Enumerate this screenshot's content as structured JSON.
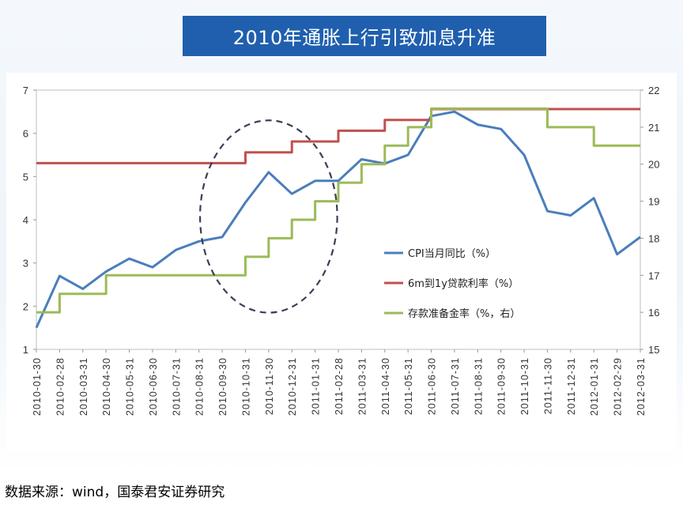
{
  "page": {
    "title": "2010年通胀上行引致加息升准",
    "source": "数据来源：wind，国泰君安证券研究"
  },
  "chart_data": {
    "type": "line",
    "title": "2010年通胀上行引致加息升准",
    "categories": [
      "2010-01-30",
      "2010-02-28",
      "2010-03-31",
      "2010-04-30",
      "2010-05-31",
      "2010-06-30",
      "2010-07-31",
      "2010-08-31",
      "2010-09-30",
      "2010-10-31",
      "2010-11-30",
      "2010-12-31",
      "2011-01-31",
      "2011-02-28",
      "2011-03-31",
      "2011-04-30",
      "2011-05-31",
      "2011-06-30",
      "2011-07-31",
      "2011-08-31",
      "2011-09-30",
      "2011-10-31",
      "2011-11-30",
      "2011-12-31",
      "2012-01-31",
      "2012-02-29",
      "2012-03-31"
    ],
    "y_left": {
      "range": [
        1,
        7
      ],
      "ticks": [
        "1",
        "2",
        "3",
        "4",
        "5",
        "6",
        "7"
      ]
    },
    "y_right": {
      "range": [
        15,
        22
      ],
      "ticks": [
        "15",
        "16",
        "17",
        "18",
        "19",
        "20",
        "21",
        "22"
      ]
    },
    "annotation": "dashed ellipse highlighting 2010-09 to 2011-01",
    "series": [
      {
        "name": "CPI当月同比（%）",
        "axis": "left",
        "color": "#4a7ebb",
        "step": false,
        "values": [
          1.5,
          2.7,
          2.4,
          2.8,
          3.1,
          2.9,
          3.3,
          3.5,
          3.6,
          4.4,
          5.1,
          4.6,
          4.9,
          4.9,
          5.4,
          5.3,
          5.5,
          6.4,
          6.5,
          6.2,
          6.1,
          5.5,
          4.2,
          4.1,
          4.5,
          3.2,
          3.6
        ]
      },
      {
        "name": "6m到1y贷款利率（%）",
        "axis": "left",
        "color": "#c0504d",
        "step": true,
        "values": [
          5.31,
          5.31,
          5.31,
          5.31,
          5.31,
          5.31,
          5.31,
          5.31,
          5.31,
          5.56,
          5.56,
          5.81,
          5.81,
          6.06,
          6.06,
          6.31,
          6.31,
          6.56,
          6.56,
          6.56,
          6.56,
          6.56,
          6.56,
          6.56,
          6.56,
          6.56,
          6.56
        ]
      },
      {
        "name": "存款准备金率（%，右）",
        "axis": "right",
        "color": "#9bbb59",
        "step": true,
        "values": [
          16.0,
          16.5,
          16.5,
          17.0,
          17.0,
          17.0,
          17.0,
          17.0,
          17.0,
          17.5,
          18.0,
          18.5,
          19.0,
          19.5,
          20.0,
          20.5,
          21.0,
          21.5,
          21.5,
          21.5,
          21.5,
          21.5,
          21.0,
          21.0,
          20.5,
          20.5,
          20.5
        ]
      }
    ]
  },
  "legend": {
    "position": "inside-right",
    "items": [
      {
        "label": "CPI当月同比（%）",
        "color": "#4a7ebb"
      },
      {
        "label": "6m到1y贷款利率（%）",
        "color": "#c0504d"
      },
      {
        "label": "存款准备金率（%，右）",
        "color": "#9bbb59"
      }
    ]
  }
}
